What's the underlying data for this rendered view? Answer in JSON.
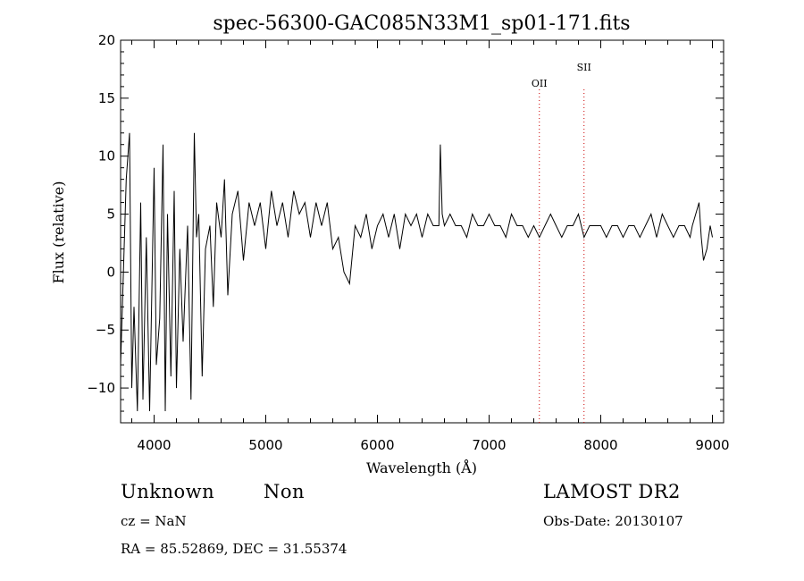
{
  "chart_data": {
    "type": "line",
    "title": "spec-56300-GAC085N33M1_sp01-171.fits",
    "xlabel": "Wavelength (Å)",
    "ylabel": "Flux (relative)",
    "xlim": [
      3700,
      9100
    ],
    "ylim": [
      -13,
      20
    ],
    "xticks": [
      4000,
      5000,
      6000,
      7000,
      8000,
      9000
    ],
    "yticks": [
      -10,
      -5,
      0,
      5,
      10,
      15,
      20
    ],
    "grid": false,
    "line_color": "#000000",
    "series": [
      {
        "x": [
          3700,
          3750,
          3780,
          3800,
          3820,
          3850,
          3880,
          3900,
          3930,
          3960,
          4000,
          4020,
          4050,
          4080,
          4100,
          4120,
          4150,
          4180,
          4200,
          4230,
          4260,
          4300,
          4330,
          4360,
          4380,
          4400,
          4430,
          4460,
          4500,
          4530,
          4560,
          4600,
          4630,
          4660,
          4700,
          4750,
          4800,
          4850,
          4900,
          4950,
          5000,
          5050,
          5100,
          5150,
          5200,
          5250,
          5300,
          5350,
          5400,
          5450,
          5500,
          5550,
          5600,
          5650,
          5700,
          5750,
          5800,
          5850,
          5900,
          5950,
          6000,
          6050,
          6100,
          6150,
          6200,
          6250,
          6300,
          6350,
          6400,
          6450,
          6500,
          6550,
          6563,
          6580,
          6600,
          6650,
          6700,
          6750,
          6800,
          6850,
          6900,
          6950,
          7000,
          7050,
          7100,
          7150,
          7200,
          7250,
          7300,
          7350,
          7400,
          7450,
          7500,
          7550,
          7600,
          7650,
          7700,
          7750,
          7800,
          7850,
          7900,
          7950,
          8000,
          8050,
          8100,
          8150,
          8200,
          8250,
          8300,
          8350,
          8400,
          8450,
          8500,
          8550,
          8600,
          8650,
          8700,
          8750,
          8800,
          8820,
          8850,
          8880,
          8900,
          8920,
          8950,
          8980,
          9000
        ],
        "y": [
          -8,
          8,
          12,
          -10,
          -3,
          -12,
          6,
          -11,
          3,
          -12,
          9,
          -8,
          -4,
          11,
          -12,
          5,
          -9,
          7,
          -10,
          2,
          -6,
          4,
          -11,
          12,
          3,
          5,
          -9,
          2,
          4,
          -3,
          6,
          3,
          8,
          -2,
          5,
          7,
          1,
          6,
          4,
          6,
          2,
          7,
          4,
          6,
          3,
          7,
          5,
          6,
          3,
          6,
          4,
          6,
          2,
          3,
          0,
          -1,
          4,
          3,
          5,
          2,
          4,
          5,
          3,
          5,
          2,
          5,
          4,
          5,
          3,
          5,
          4,
          4,
          11,
          5,
          4,
          5,
          4,
          4,
          3,
          5,
          4,
          4,
          5,
          4,
          4,
          3,
          5,
          4,
          4,
          3,
          4,
          3,
          4,
          5,
          4,
          3,
          4,
          4,
          5,
          3,
          4,
          4,
          4,
          3,
          4,
          4,
          3,
          4,
          4,
          3,
          4,
          5,
          3,
          5,
          4,
          3,
          4,
          4,
          3,
          4,
          5,
          6,
          3,
          1,
          2,
          4,
          3
        ]
      }
    ],
    "annotations": [
      {
        "label": "OII",
        "x": 7450
      },
      {
        "label": "SII",
        "x": 7850
      }
    ],
    "annotation_color": "#cc0000"
  },
  "info": {
    "class": "Unknown",
    "subclass": "Non",
    "survey": "LAMOST DR2",
    "cz": "cz = NaN",
    "obs_date": "Obs-Date: 20130107",
    "coords": "RA =  85.52869, DEC =  31.55374"
  }
}
